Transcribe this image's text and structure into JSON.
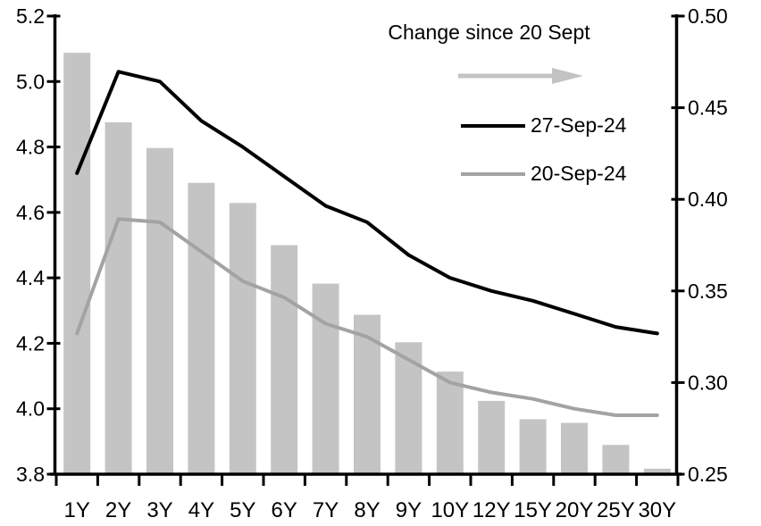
{
  "chart_data": {
    "type": "combo-bar-line",
    "title": "",
    "categories": [
      "1Y",
      "2Y",
      "3Y",
      "4Y",
      "5Y",
      "6Y",
      "7Y",
      "8Y",
      "9Y",
      "10Y",
      "12Y",
      "15Y",
      "20Y",
      "25Y",
      "30Y"
    ],
    "series": [
      {
        "name": "Change since 20 Sept",
        "type": "bar",
        "axis": "right",
        "color": "#c4c4c4",
        "values": [
          0.48,
          0.442,
          0.428,
          0.409,
          0.398,
          0.375,
          0.354,
          0.337,
          0.322,
          0.306,
          0.29,
          0.28,
          0.278,
          0.266,
          0.253
        ]
      },
      {
        "name": "27-Sep-24",
        "type": "line",
        "axis": "left",
        "color": "#000000",
        "values": [
          4.72,
          5.03,
          5.0,
          4.88,
          4.8,
          4.71,
          4.62,
          4.57,
          4.47,
          4.4,
          4.36,
          4.33,
          4.29,
          4.25,
          4.23
        ]
      },
      {
        "name": "20-Sep-24",
        "type": "line",
        "axis": "left",
        "color": "#a3a3a3",
        "values": [
          4.23,
          4.58,
          4.57,
          4.48,
          4.39,
          4.34,
          4.26,
          4.22,
          4.15,
          4.08,
          4.05,
          4.03,
          4.0,
          3.98,
          3.98
        ]
      }
    ],
    "axes": {
      "left": {
        "min": 3.8,
        "max": 5.2,
        "tick_labels": [
          "5.2",
          "5.0",
          "4.8",
          "4.6",
          "4.4",
          "4.2",
          "4.0",
          "3.8"
        ]
      },
      "right": {
        "min": 0.25,
        "max": 0.5,
        "tick_labels": [
          "0.50",
          "0.45",
          "0.40",
          "0.35",
          "0.30",
          "0.25"
        ]
      }
    },
    "legend": {
      "title": "Change since 20 Sept",
      "arrow_icon": "right-arrow",
      "items": [
        {
          "label": "27-Sep-24",
          "color": "#000000"
        },
        {
          "label": "20-Sep-24",
          "color": "#a3a3a3"
        }
      ],
      "position": "top-right"
    },
    "grid": false,
    "colors": {
      "axis": "#000000",
      "bar": "#c4c4c4",
      "arrow": "#c3c3c3"
    }
  }
}
